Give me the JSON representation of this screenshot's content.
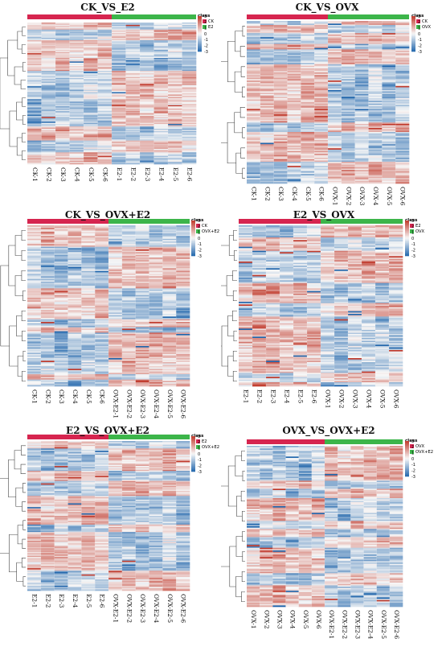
{
  "colors": {
    "low": "#2166ac",
    "mid": "#f7f7f7",
    "high": "#c0392b",
    "group_a": "#d6254f",
    "group_b": "#3cb54a"
  },
  "chart_data": [
    {
      "type": "heatmap",
      "title": "CK_VS_E2",
      "columns": [
        "CK-1",
        "CK-2",
        "CK-3",
        "CK-4",
        "CK-5",
        "CK-6",
        "E2-1",
        "E2-2",
        "E2-3",
        "E2-4",
        "E2-5",
        "E2-6"
      ],
      "groups": [
        {
          "name": "CK",
          "count": 6
        },
        {
          "name": "E2",
          "count": 6
        }
      ],
      "legend_title": "class",
      "scale_ticks": [
        "3",
        "2",
        "1",
        "0",
        "-1",
        "-2",
        "-3"
      ],
      "scale_range": [
        -3,
        3
      ],
      "rows_approx": 120,
      "seed": 11
    },
    {
      "type": "heatmap",
      "title": "CK_VS_OVX",
      "columns": [
        "CK-1",
        "CK-2",
        "CK-3",
        "CK-4",
        "CK-5",
        "CK-6",
        "OVX-1",
        "OVX-2",
        "OVX-3",
        "OVX-4",
        "OVX-5",
        "OVX-6"
      ],
      "groups": [
        {
          "name": "CK",
          "count": 6
        },
        {
          "name": "OVX",
          "count": 6
        }
      ],
      "legend_title": "class",
      "scale_ticks": [
        "3",
        "2",
        "1",
        "0",
        "-1",
        "-2",
        "-3"
      ],
      "scale_range": [
        -3,
        3
      ],
      "rows_approx": 120,
      "seed": 23
    },
    {
      "type": "heatmap",
      "title": "CK_VS_OVX+E2",
      "columns": [
        "CK-1",
        "CK-2",
        "CK-3",
        "CK-4",
        "CK-5",
        "CK-6",
        "OVX-E2-1",
        "OVX-E2-2",
        "OVX-E2-3",
        "OVX-E2-4",
        "OVX-E2-5",
        "OVX-E2-6"
      ],
      "groups": [
        {
          "name": "CK",
          "count": 6
        },
        {
          "name": "OVX+E2",
          "count": 6
        }
      ],
      "legend_title": "class",
      "scale_ticks": [
        "3",
        "2",
        "1",
        "0",
        "-1",
        "-2",
        "-3"
      ],
      "scale_range": [
        -3,
        3
      ],
      "rows_approx": 120,
      "seed": 37
    },
    {
      "type": "heatmap",
      "title": "E2_VS_OVX",
      "columns": [
        "E2-1",
        "E2-2",
        "E2-3",
        "E2-4",
        "E2-5",
        "E2-6",
        "OVX-1",
        "OVX-2",
        "OVX-3",
        "OVX-4",
        "OVX-5",
        "OVX-6"
      ],
      "groups": [
        {
          "name": "E2",
          "count": 6
        },
        {
          "name": "OVX",
          "count": 6
        }
      ],
      "legend_title": "class",
      "scale_ticks": [
        "3",
        "2",
        "1",
        "0",
        "-1",
        "-2",
        "-3"
      ],
      "scale_range": [
        -3,
        3
      ],
      "rows_approx": 120,
      "seed": 41
    },
    {
      "type": "heatmap",
      "title": "E2_VS_OVX+E2",
      "columns": [
        "E2-1",
        "E2-2",
        "E2-3",
        "E2-4",
        "E2-5",
        "E2-6",
        "OVX-E2-1",
        "OVX-E2-2",
        "OVX-E2-3",
        "OVX-E2-4",
        "OVX-E2-5",
        "OVX-E2-6"
      ],
      "groups": [
        {
          "name": "E2",
          "count": 6
        },
        {
          "name": "OVX+E2",
          "count": 6
        }
      ],
      "legend_title": "class",
      "scale_ticks": [
        "3",
        "2",
        "1",
        "0",
        "-1",
        "-2",
        "-3"
      ],
      "scale_range": [
        -3,
        3
      ],
      "rows_approx": 120,
      "seed": 53
    },
    {
      "type": "heatmap",
      "title": "OVX_VS_OVX+E2",
      "columns": [
        "OVX-1",
        "OVX-2",
        "OVX-3",
        "OVX-4",
        "OVX-5",
        "OVX-6",
        "OVX-E2-1",
        "OVX-E2-2",
        "OVX-E2-3",
        "OVX-E2-4",
        "OVX-E2-5",
        "OVX-E2-6"
      ],
      "groups": [
        {
          "name": "OVX",
          "count": 6
        },
        {
          "name": "OVX+E2",
          "count": 6
        }
      ],
      "legend_title": "class",
      "scale_ticks": [
        "3",
        "2",
        "1",
        "0",
        "-1",
        "-2",
        "-3"
      ],
      "scale_range": [
        -3,
        3
      ],
      "rows_approx": 120,
      "seed": 67
    }
  ]
}
